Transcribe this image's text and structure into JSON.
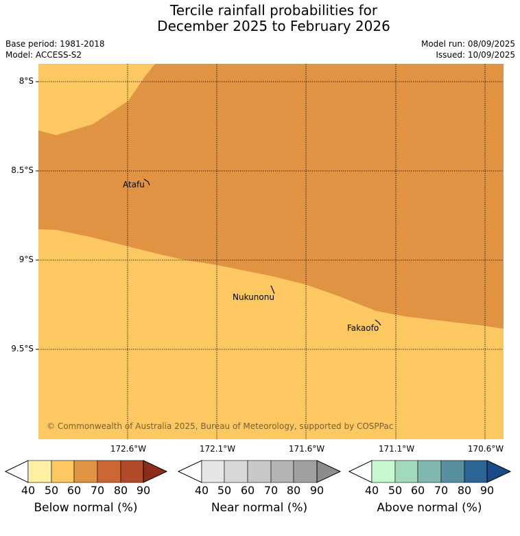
{
  "title_line1": "Tercile rainfall probabilities for",
  "title_line2": "December 2025 to February 2026",
  "base_period": "Base period: 1981-2018",
  "model": "Model: ACCESS-S2",
  "model_run": "Model run: 08/09/2025",
  "issued": "Issued: 10/09/2025",
  "copyright": "© Commonwealth of Australia 2025, Bureau of Meteorology, supported by COSPPac",
  "lat_labels": [
    "8°S",
    "8.5°S",
    "9°S",
    "9.5°S"
  ],
  "lon_labels": [
    "172.6°W",
    "172.1°W",
    "171.6°W",
    "171.1°W",
    "170.6°W"
  ],
  "places": [
    "Atafu",
    "Nukunonu",
    "Fakaofo"
  ],
  "colors": {
    "below_50_60": "#fdc862",
    "below_60_70": "#e09443",
    "grid": "#000000"
  },
  "legends": [
    {
      "label": "Below normal (%)",
      "ticks": [
        "40",
        "50",
        "60",
        "70",
        "80",
        "90"
      ],
      "colors": [
        "#ffffff",
        "#fff0a3",
        "#fdc862",
        "#e09443",
        "#cc6633",
        "#b04a28",
        "#8c2d1a"
      ]
    },
    {
      "label": "Near normal (%)",
      "ticks": [
        "40",
        "50",
        "60",
        "70",
        "80",
        "90"
      ],
      "colors": [
        "#ffffff",
        "#e6e6e6",
        "#d8d8d8",
        "#c8c8c8",
        "#b4b4b4",
        "#a0a0a0",
        "#8c8c8c"
      ]
    },
    {
      "label": "Above normal (%)",
      "ticks": [
        "40",
        "50",
        "60",
        "70",
        "80",
        "90"
      ],
      "colors": [
        "#ffffff",
        "#c8f8d0",
        "#a2d8bc",
        "#80b8b0",
        "#5890a0",
        "#2c6496",
        "#1a4a88"
      ]
    }
  ]
}
